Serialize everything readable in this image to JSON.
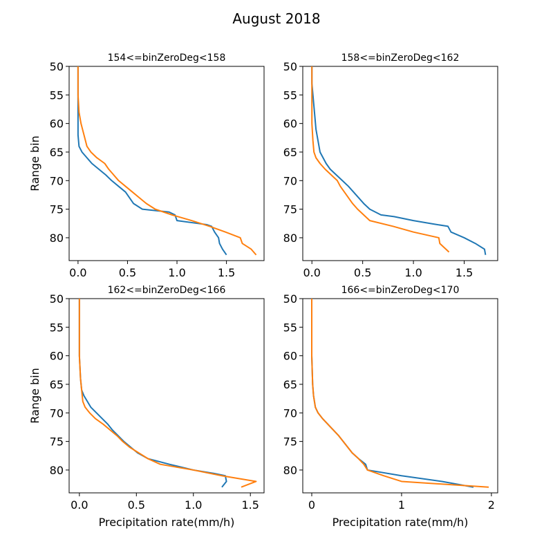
{
  "figure_title": "August 2018",
  "colors": {
    "series_0": "#1f77b4",
    "series_1": "#ff7f0e"
  },
  "chart_data": [
    {
      "type": "line",
      "title": "154<=binZeroDeg<158",
      "xlabel": "",
      "ylabel": "Range bin",
      "xlim": [
        -0.09,
        1.88
      ],
      "ylim": [
        84,
        50
      ],
      "y_inverted": true,
      "xticks": [
        {
          "v": 0.0,
          "label": "0.0"
        },
        {
          "v": 0.5,
          "label": "0.5"
        },
        {
          "v": 1.0,
          "label": "1.0"
        },
        {
          "v": 1.5,
          "label": "1.5"
        }
      ],
      "yticks": [
        {
          "v": 50,
          "label": "50"
        },
        {
          "v": 55,
          "label": "55"
        },
        {
          "v": 60,
          "label": "60"
        },
        {
          "v": 65,
          "label": "65"
        },
        {
          "v": 70,
          "label": "70"
        },
        {
          "v": 75,
          "label": "75"
        },
        {
          "v": 80,
          "label": "80"
        }
      ],
      "series": [
        {
          "color": "#1f77b4",
          "points": [
            [
              0.0,
              50
            ],
            [
              0.0,
              55
            ],
            [
              0.0,
              60
            ],
            [
              0.0,
              62
            ],
            [
              0.01,
              64
            ],
            [
              0.04,
              65
            ],
            [
              0.09,
              66
            ],
            [
              0.14,
              67
            ],
            [
              0.21,
              68
            ],
            [
              0.28,
              69
            ],
            [
              0.34,
              70
            ],
            [
              0.41,
              71
            ],
            [
              0.48,
              72
            ],
            [
              0.52,
              73
            ],
            [
              0.56,
              74
            ],
            [
              0.65,
              75
            ],
            [
              0.92,
              75.5
            ],
            [
              0.98,
              76
            ],
            [
              1.0,
              77
            ],
            [
              1.3,
              77.7
            ],
            [
              1.35,
              78
            ],
            [
              1.38,
              79
            ],
            [
              1.42,
              80
            ],
            [
              1.43,
              81
            ],
            [
              1.46,
              82
            ],
            [
              1.5,
              83
            ]
          ]
        },
        {
          "color": "#ff7f0e",
          "points": [
            [
              0.0,
              50
            ],
            [
              0.0,
              55
            ],
            [
              0.01,
              58
            ],
            [
              0.03,
              60
            ],
            [
              0.06,
              62
            ],
            [
              0.09,
              64
            ],
            [
              0.13,
              65
            ],
            [
              0.19,
              66
            ],
            [
              0.27,
              67
            ],
            [
              0.31,
              68
            ],
            [
              0.36,
              69
            ],
            [
              0.41,
              70
            ],
            [
              0.48,
              71
            ],
            [
              0.55,
              72
            ],
            [
              0.62,
              73
            ],
            [
              0.69,
              74
            ],
            [
              0.78,
              75
            ],
            [
              0.95,
              76
            ],
            [
              1.15,
              77
            ],
            [
              1.33,
              78
            ],
            [
              1.49,
              79
            ],
            [
              1.64,
              80
            ],
            [
              1.66,
              81
            ],
            [
              1.75,
              82
            ],
            [
              1.8,
              83
            ]
          ]
        }
      ]
    },
    {
      "type": "line",
      "title": "158<=binZeroDeg<162",
      "xlabel": "",
      "ylabel": "",
      "xlim": [
        -0.09,
        1.83
      ],
      "ylim": [
        84,
        50
      ],
      "y_inverted": true,
      "xticks": [
        {
          "v": 0.0,
          "label": "0.0"
        },
        {
          "v": 0.5,
          "label": "0.5"
        },
        {
          "v": 1.0,
          "label": "1.0"
        },
        {
          "v": 1.5,
          "label": "1.5"
        }
      ],
      "yticks": [
        {
          "v": 50,
          "label": "50"
        },
        {
          "v": 55,
          "label": "55"
        },
        {
          "v": 60,
          "label": "60"
        },
        {
          "v": 65,
          "label": "65"
        },
        {
          "v": 70,
          "label": "70"
        },
        {
          "v": 75,
          "label": "75"
        },
        {
          "v": 80,
          "label": "80"
        }
      ],
      "series": [
        {
          "color": "#1f77b4",
          "points": [
            [
              0.0,
              50
            ],
            [
              0.0,
              53
            ],
            [
              0.01,
              55
            ],
            [
              0.02,
              57
            ],
            [
              0.03,
              59
            ],
            [
              0.04,
              61
            ],
            [
              0.06,
              63
            ],
            [
              0.08,
              65
            ],
            [
              0.11,
              66
            ],
            [
              0.14,
              67
            ],
            [
              0.18,
              68
            ],
            [
              0.24,
              69
            ],
            [
              0.3,
              70
            ],
            [
              0.36,
              71
            ],
            [
              0.41,
              72
            ],
            [
              0.46,
              73
            ],
            [
              0.51,
              74
            ],
            [
              0.57,
              75
            ],
            [
              0.68,
              76
            ],
            [
              0.81,
              76.3
            ],
            [
              1.0,
              77
            ],
            [
              1.2,
              77.6
            ],
            [
              1.34,
              78
            ],
            [
              1.37,
              79
            ],
            [
              1.5,
              80
            ],
            [
              1.61,
              81
            ],
            [
              1.7,
              82
            ],
            [
              1.71,
              83
            ]
          ]
        },
        {
          "color": "#ff7f0e",
          "points": [
            [
              0.0,
              50
            ],
            [
              0.0,
              55
            ],
            [
              0.0,
              60
            ],
            [
              0.01,
              63
            ],
            [
              0.02,
              65
            ],
            [
              0.04,
              66
            ],
            [
              0.08,
              67
            ],
            [
              0.13,
              68
            ],
            [
              0.19,
              69
            ],
            [
              0.25,
              70
            ],
            [
              0.28,
              71
            ],
            [
              0.32,
              72
            ],
            [
              0.36,
              73
            ],
            [
              0.4,
              74
            ],
            [
              0.45,
              75
            ],
            [
              0.51,
              76
            ],
            [
              0.57,
              77
            ],
            [
              0.8,
              78
            ],
            [
              1.0,
              79
            ],
            [
              1.25,
              80
            ],
            [
              1.26,
              81
            ],
            [
              1.35,
              82.5
            ]
          ]
        }
      ]
    },
    {
      "type": "line",
      "title": "162<=binZeroDeg<166",
      "xlabel": "Precipitation rate(mm/h)",
      "ylabel": "Range bin",
      "xlim": [
        -0.09,
        1.62
      ],
      "ylim": [
        84,
        50
      ],
      "y_inverted": true,
      "xticks": [
        {
          "v": 0.0,
          "label": "0.0"
        },
        {
          "v": 0.5,
          "label": "0.5"
        },
        {
          "v": 1.0,
          "label": "1.0"
        },
        {
          "v": 1.5,
          "label": "1.5"
        }
      ],
      "yticks": [
        {
          "v": 50,
          "label": "50"
        },
        {
          "v": 55,
          "label": "55"
        },
        {
          "v": 60,
          "label": "60"
        },
        {
          "v": 65,
          "label": "65"
        },
        {
          "v": 70,
          "label": "70"
        },
        {
          "v": 75,
          "label": "75"
        },
        {
          "v": 80,
          "label": "80"
        }
      ],
      "series": [
        {
          "color": "#1f77b4",
          "points": [
            [
              0.0,
              50
            ],
            [
              0.0,
              55
            ],
            [
              0.0,
              60
            ],
            [
              0.01,
              64
            ],
            [
              0.02,
              66
            ],
            [
              0.04,
              67
            ],
            [
              0.07,
              68
            ],
            [
              0.1,
              69
            ],
            [
              0.15,
              70
            ],
            [
              0.2,
              71
            ],
            [
              0.25,
              72
            ],
            [
              0.29,
              73
            ],
            [
              0.34,
              74
            ],
            [
              0.39,
              75
            ],
            [
              0.45,
              76
            ],
            [
              0.51,
              77
            ],
            [
              0.6,
              78
            ],
            [
              0.79,
              79
            ],
            [
              1.0,
              80
            ],
            [
              1.18,
              80.6
            ],
            [
              1.28,
              81
            ],
            [
              1.29,
              82
            ],
            [
              1.25,
              83
            ]
          ]
        },
        {
          "color": "#ff7f0e",
          "points": [
            [
              0.0,
              50
            ],
            [
              0.0,
              55
            ],
            [
              0.0,
              60
            ],
            [
              0.01,
              64
            ],
            [
              0.02,
              66
            ],
            [
              0.03,
              68
            ],
            [
              0.05,
              69
            ],
            [
              0.09,
              70
            ],
            [
              0.14,
              71
            ],
            [
              0.21,
              72
            ],
            [
              0.27,
              73
            ],
            [
              0.33,
              74
            ],
            [
              0.38,
              75
            ],
            [
              0.44,
              76
            ],
            [
              0.52,
              77
            ],
            [
              0.6,
              78
            ],
            [
              0.71,
              79
            ],
            [
              1.0,
              80
            ],
            [
              1.25,
              81
            ],
            [
              1.55,
              82
            ],
            [
              1.42,
              83
            ]
          ]
        }
      ]
    },
    {
      "type": "line",
      "title": "166<=binZeroDeg<170",
      "xlabel": "Precipitation rate(mm/h)",
      "ylabel": "",
      "xlim": [
        -0.1,
        2.07
      ],
      "ylim": [
        84,
        50
      ],
      "y_inverted": true,
      "xticks": [
        {
          "v": 0,
          "label": "0"
        },
        {
          "v": 1,
          "label": "1"
        },
        {
          "v": 2,
          "label": "2"
        }
      ],
      "yticks": [
        {
          "v": 50,
          "label": "50"
        },
        {
          "v": 55,
          "label": "55"
        },
        {
          "v": 60,
          "label": "60"
        },
        {
          "v": 65,
          "label": "65"
        },
        {
          "v": 70,
          "label": "70"
        },
        {
          "v": 75,
          "label": "75"
        },
        {
          "v": 80,
          "label": "80"
        }
      ],
      "series": [
        {
          "color": "#1f77b4",
          "points": [
            [
              0.0,
              50
            ],
            [
              0.0,
              55
            ],
            [
              0.0,
              60
            ],
            [
              0.01,
              65
            ],
            [
              0.02,
              67
            ],
            [
              0.04,
              69
            ],
            [
              0.07,
              70
            ],
            [
              0.12,
              71
            ],
            [
              0.18,
              72
            ],
            [
              0.24,
              73
            ],
            [
              0.3,
              74
            ],
            [
              0.35,
              75
            ],
            [
              0.4,
              76
            ],
            [
              0.45,
              77
            ],
            [
              0.52,
              78
            ],
            [
              0.6,
              79
            ],
            [
              0.62,
              80
            ],
            [
              1.0,
              81
            ],
            [
              1.45,
              82
            ],
            [
              1.8,
              83
            ]
          ]
        },
        {
          "color": "#ff7f0e",
          "points": [
            [
              0.0,
              50
            ],
            [
              0.0,
              55
            ],
            [
              0.0,
              60
            ],
            [
              0.01,
              65
            ],
            [
              0.02,
              67
            ],
            [
              0.04,
              69
            ],
            [
              0.07,
              70
            ],
            [
              0.12,
              71
            ],
            [
              0.18,
              72
            ],
            [
              0.24,
              73
            ],
            [
              0.3,
              74
            ],
            [
              0.35,
              75
            ],
            [
              0.4,
              76
            ],
            [
              0.45,
              77
            ],
            [
              0.52,
              78
            ],
            [
              0.58,
              79
            ],
            [
              0.62,
              80
            ],
            [
              0.8,
              81
            ],
            [
              1.0,
              82
            ],
            [
              1.97,
              83
            ]
          ]
        }
      ]
    }
  ]
}
